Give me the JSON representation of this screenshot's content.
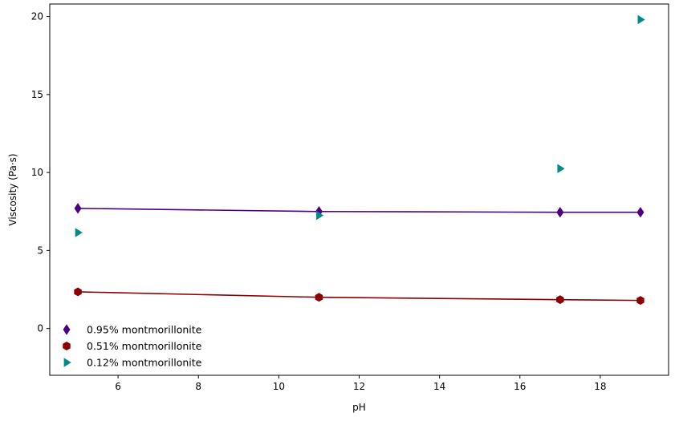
{
  "chart_data": {
    "type": "scatter",
    "title": "",
    "xlabel": "pH",
    "ylabel": "Viscosity (Pa·s)",
    "xlim": [
      4.3,
      19.7
    ],
    "ylim": [
      -3.0,
      20.8
    ],
    "xticks": [
      6,
      8,
      10,
      12,
      14,
      16,
      18
    ],
    "yticks": [
      0,
      5,
      10,
      15,
      20
    ],
    "grid": false,
    "legend_position": "lower-left",
    "series": [
      {
        "name": "0.95% montmorillonite",
        "marker": "thin-diamond",
        "color": "#4b0082",
        "line_color": "#4b0082",
        "x": [
          5,
          11,
          17,
          19
        ],
        "y": [
          7.7,
          7.5,
          7.45,
          7.45
        ],
        "fit_line": true
      },
      {
        "name": "0.51% montmorillonite",
        "marker": "hexagon",
        "color": "#8b0000",
        "line_color": "#8b0000",
        "x": [
          5,
          11,
          17,
          19
        ],
        "y": [
          2.35,
          2.0,
          1.85,
          1.8
        ],
        "fit_line": true
      },
      {
        "name": "0.12% montmorillonite",
        "marker": "triangle-right",
        "color": "#008b8b",
        "x": [
          5,
          11,
          17,
          19
        ],
        "y": [
          6.15,
          7.25,
          10.25,
          19.8
        ],
        "fit_line": false
      }
    ]
  }
}
